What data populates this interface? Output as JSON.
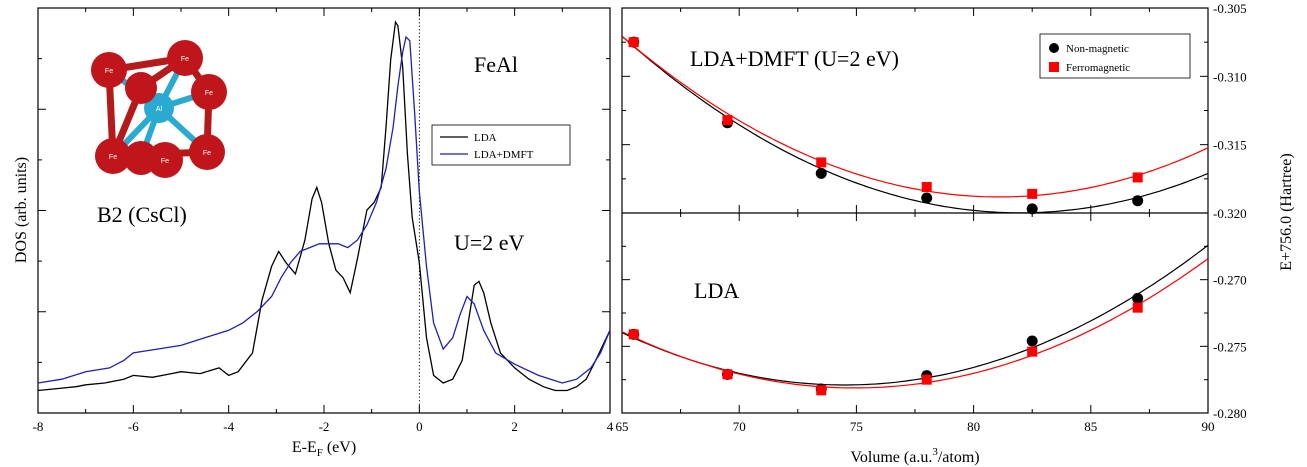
{
  "chart_data": [
    {
      "type": "line",
      "xlabel": "E-E",
      "xlabel_sub": "F",
      "xlabel_unit": " (eV)",
      "ylabel": "DOS (arb. units)",
      "xlim": [
        -8,
        4
      ],
      "ylim": [
        0,
        1
      ],
      "x_ticks": [
        "-8",
        "-6",
        "-4",
        "-2",
        "0",
        "2",
        "4"
      ],
      "annotations": {
        "material": "FeAl",
        "structure": "B2 (CsCl)",
        "interaction": "U=2 eV",
        "atom_fe": "Fe",
        "atom_al": "Al"
      },
      "fermi_line_x": 0,
      "series": [
        {
          "name": "LDA",
          "color": "#000000",
          "x": [
            -8,
            -7.6,
            -7.2,
            -7,
            -6.6,
            -6.2,
            -6,
            -5.6,
            -5.2,
            -5,
            -4.6,
            -4.2,
            -4,
            -3.8,
            -3.5,
            -3.3,
            -3.1,
            -2.95,
            -2.8,
            -2.6,
            -2.4,
            -2.25,
            -2.15,
            -2.05,
            -1.9,
            -1.75,
            -1.6,
            -1.45,
            -1.3,
            -1.1,
            -0.95,
            -0.8,
            -0.7,
            -0.6,
            -0.5,
            -0.45,
            -0.35,
            -0.25,
            -0.15,
            0,
            0.15,
            0.3,
            0.5,
            0.7,
            0.9,
            1.05,
            1.15,
            1.25,
            1.35,
            1.5,
            1.7,
            2,
            2.3,
            2.6,
            2.85,
            3.1,
            3.3,
            3.5,
            3.7,
            3.85,
            4
          ],
          "y": [
            0.02,
            0.025,
            0.03,
            0.035,
            0.04,
            0.05,
            0.06,
            0.055,
            0.065,
            0.07,
            0.065,
            0.08,
            0.06,
            0.07,
            0.12,
            0.26,
            0.35,
            0.39,
            0.36,
            0.33,
            0.42,
            0.53,
            0.56,
            0.52,
            0.41,
            0.34,
            0.32,
            0.28,
            0.37,
            0.5,
            0.52,
            0.56,
            0.72,
            0.9,
            1.0,
            0.99,
            0.88,
            0.65,
            0.48,
            0.36,
            0.16,
            0.06,
            0.04,
            0.05,
            0.1,
            0.22,
            0.3,
            0.31,
            0.28,
            0.2,
            0.12,
            0.08,
            0.05,
            0.03,
            0.02,
            0.02,
            0.03,
            0.05,
            0.1,
            0.14,
            0.18
          ]
        },
        {
          "name": "LDA+DMFT",
          "color": "#1f1fb4",
          "x": [
            -8,
            -7.5,
            -7,
            -6.5,
            -6.2,
            -6,
            -5.5,
            -5,
            -4.5,
            -4,
            -3.7,
            -3.4,
            -3.1,
            -2.9,
            -2.7,
            -2.5,
            -2.3,
            -2.1,
            -1.9,
            -1.7,
            -1.5,
            -1.3,
            -1.1,
            -0.9,
            -0.7,
            -0.55,
            -0.45,
            -0.35,
            -0.28,
            -0.2,
            -0.1,
            0,
            0.15,
            0.3,
            0.5,
            0.7,
            0.85,
            1.0,
            1.15,
            1.35,
            1.6,
            2,
            2.5,
            3,
            3.3,
            3.6,
            3.8,
            4
          ],
          "y": [
            0.04,
            0.05,
            0.07,
            0.08,
            0.1,
            0.12,
            0.13,
            0.14,
            0.16,
            0.18,
            0.2,
            0.23,
            0.27,
            0.32,
            0.36,
            0.39,
            0.4,
            0.41,
            0.41,
            0.41,
            0.4,
            0.42,
            0.46,
            0.52,
            0.61,
            0.72,
            0.83,
            0.92,
            0.96,
            0.95,
            0.76,
            0.55,
            0.35,
            0.2,
            0.13,
            0.16,
            0.22,
            0.27,
            0.25,
            0.18,
            0.12,
            0.09,
            0.06,
            0.04,
            0.05,
            0.08,
            0.12,
            0.18
          ]
        }
      ]
    },
    {
      "type": "scatter",
      "title": "LDA+DMFT (U=2 eV)",
      "xlim": [
        65,
        90
      ],
      "ylim": [
        -0.32,
        -0.305
      ],
      "y_ticks": [
        "-0.320",
        "-0.315",
        "-0.310",
        "-0.305"
      ],
      "series": [
        {
          "name": "Non-magnetic",
          "color": "#000000",
          "marker": "circle",
          "x": [
            65.5,
            69.5,
            73.5,
            78,
            82.5,
            87
          ],
          "y": [
            -0.3075,
            -0.3134,
            -0.3171,
            -0.3189,
            -0.3197,
            -0.3191
          ]
        },
        {
          "name": "Ferromagnetic",
          "color": "#ff0000",
          "marker": "square",
          "x": [
            65.5,
            69.5,
            73.5,
            78,
            82.5,
            87
          ],
          "y": [
            -0.3075,
            -0.3132,
            -0.3163,
            -0.3181,
            -0.3186,
            -0.3174
          ]
        }
      ]
    },
    {
      "type": "scatter",
      "title": "LDA",
      "xlabel": "Volume (a.u.",
      "xlabel_sup": "3",
      "xlabel_unit": "/atom)",
      "ylabel": "E+756.0 (Hartree)",
      "xlim": [
        65,
        90
      ],
      "ylim": [
        -0.28,
        -0.265
      ],
      "x_ticks": [
        "65",
        "70",
        "75",
        "80",
        "85",
        "90"
      ],
      "y_ticks": [
        "-0.280",
        "-0.275",
        "-0.270"
      ],
      "series": [
        {
          "name": "Non-magnetic",
          "color": "#000000",
          "marker": "circle",
          "x": [
            65.5,
            69.5,
            73.5,
            78,
            82.5,
            87
          ],
          "y": [
            -0.2741,
            -0.2771,
            -0.2782,
            -0.2772,
            -0.2746,
            -0.2714
          ]
        },
        {
          "name": "Ferromagnetic",
          "color": "#ff0000",
          "marker": "square",
          "x": [
            65.5,
            69.5,
            73.5,
            78,
            82.5,
            87
          ],
          "y": [
            -0.2741,
            -0.2771,
            -0.2783,
            -0.2775,
            -0.2754,
            -0.2721
          ]
        }
      ]
    }
  ]
}
